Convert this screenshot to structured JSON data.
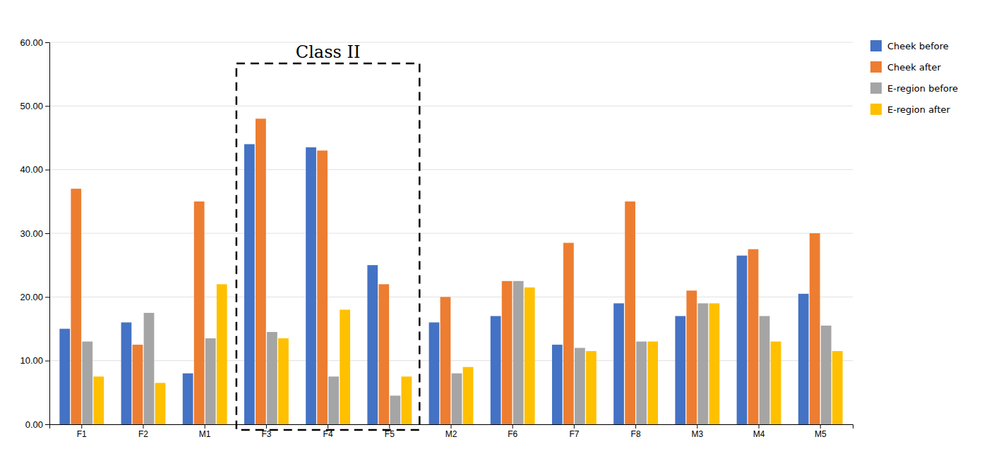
{
  "chart_data": {
    "type": "bar",
    "categories": [
      "F1",
      "F2",
      "M1",
      "F3",
      "F4",
      "F5",
      "M2",
      "F6",
      "F7",
      "F8",
      "M3",
      "M4",
      "M5"
    ],
    "series": [
      {
        "name": "Cheek before",
        "color": "#4472C4",
        "values": [
          15.0,
          16.0,
          8.0,
          44.0,
          43.5,
          25.0,
          16.0,
          17.0,
          12.5,
          19.0,
          17.0,
          26.5,
          20.5
        ]
      },
      {
        "name": "Cheek after",
        "color": "#ED7D31",
        "values": [
          37.0,
          12.5,
          35.0,
          48.0,
          43.0,
          22.0,
          20.0,
          22.5,
          28.5,
          35.0,
          21.0,
          27.5,
          30.0
        ]
      },
      {
        "name": "E-region before",
        "color": "#A5A5A5",
        "values": [
          13.0,
          17.5,
          13.5,
          14.5,
          7.5,
          4.5,
          8.0,
          22.5,
          12.0,
          13.0,
          19.0,
          17.0,
          15.5
        ]
      },
      {
        "name": "E-region after",
        "color": "#FFC000",
        "values": [
          7.5,
          6.5,
          22.0,
          13.5,
          18.0,
          7.5,
          9.0,
          21.5,
          11.5,
          13.0,
          19.0,
          13.0,
          11.5
        ]
      }
    ],
    "ylim": [
      0,
      60
    ],
    "yticks": [
      {
        "value": 0,
        "label": "0.00"
      },
      {
        "value": 10,
        "label": "10.00"
      },
      {
        "value": 20,
        "label": "20.00"
      },
      {
        "value": 30,
        "label": "30.00"
      },
      {
        "value": 40,
        "label": "40.00"
      },
      {
        "value": 50,
        "label": "50.00"
      },
      {
        "value": 60,
        "label": "60.00"
      }
    ],
    "grid": true,
    "legend": "right",
    "annotations": [
      {
        "text": "Class II",
        "categories": [
          "F3",
          "F4",
          "F5"
        ]
      }
    ]
  }
}
